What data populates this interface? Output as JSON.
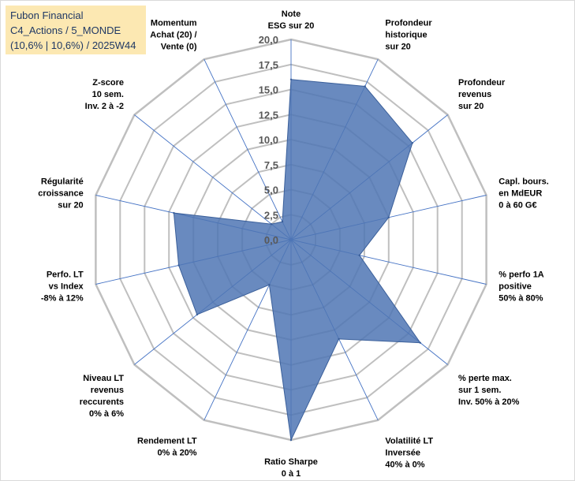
{
  "info": {
    "line1": "Fubon Financial",
    "line2": "C4_Actions / 5_MONDE",
    "line3": "(10,6% | 10,6%) / 2025W44"
  },
  "colors": {
    "fill": "#4f76b4",
    "grid": "#bfbfbf",
    "spoke": "#4472c4",
    "info_bg": "#fce8b2",
    "info_text": "#1f3864"
  },
  "chart_data": {
    "type": "radar",
    "rlim": [
      0,
      20
    ],
    "ticks": [
      "0,0",
      "2,5",
      "5,0",
      "7,5",
      "10,0",
      "12,5",
      "15,0",
      "17,5",
      "20,0"
    ],
    "axes": [
      [
        "Note",
        "ESG sur 20"
      ],
      [
        "Profondeur",
        "historique",
        "sur 20"
      ],
      [
        "Profondeur",
        "revenus",
        "sur 20"
      ],
      [
        "Capl. bours.",
        "en MdEUR",
        "0 à 60 G€"
      ],
      [
        "% perfo 1A",
        "positive",
        "50% à 80%"
      ],
      [
        "% perte max.",
        "sur 1 sem.",
        "Inv. 50% à 20%"
      ],
      [
        "Volatilité LT",
        "Inversée",
        "40% à 0%"
      ],
      [
        "Ratio Sharpe",
        "0 à 1"
      ],
      [
        "Rendement LT",
        "0% à 20%"
      ],
      [
        "Niveau LT",
        "revenus",
        "reccurents",
        "0% à 6%"
      ],
      [
        "Perfo. LT",
        "vs Index",
        "-8% à 12%"
      ],
      [
        "Régularité",
        "croissance",
        "sur 20"
      ],
      [
        "Z-score",
        "10 sem.",
        "Inv. 2 à -2"
      ],
      [
        "Momentum",
        "Achat (20) /",
        "Vente (0)"
      ]
    ],
    "values": [
      16,
      17,
      15.5,
      10,
      7,
      16.5,
      11,
      20,
      5,
      12,
      11.5,
      12,
      2.5,
      2
    ]
  }
}
